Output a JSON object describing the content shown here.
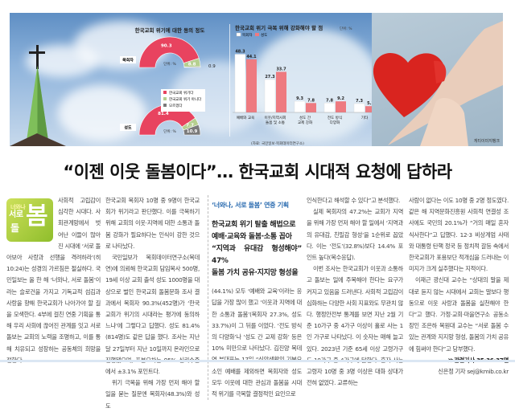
{
  "headline": "“이젠 이웃 돌봄이다”… 한국교회 시대적 요청에 답하라",
  "photo_credit": "게티이미지뱅크",
  "colors": {
    "pink": "#e8435f",
    "green": "#b5cf8f",
    "gray": "#7a7a7a",
    "bar_pastor": "#ffffff",
    "bar_member": "#ee7a80",
    "kicker": "#2b6cb0"
  },
  "chart_data": [
    {
      "type": "pie",
      "title": "한국교회 위기에 대한 동의 정도",
      "unit_label": "단위: %",
      "legend": [
        "한국교회 위기다",
        "한국교회 위기 아니다",
        "모르겠다"
      ],
      "series": [
        {
          "name": "목회자",
          "values": [
            90.3,
            8.8,
            0.9
          ]
        },
        {
          "name": "성도",
          "values": [
            81.4,
            7.7,
            10.9
          ]
        }
      ]
    },
    {
      "type": "bar",
      "title": "한국교회 위기 극복 위해 강화해야 할 점",
      "unit_label": "단위: %",
      "categories": [
        "예배와 교육",
        "이웃/지역사회 돌봄 및 소통",
        "성도 간 교제 강화",
        "전도 방식 다양화",
        "기타"
      ],
      "series": [
        {
          "name": "목회자",
          "values": [
            48.3,
            27.3,
            9.3,
            7.8,
            7.3
          ]
        },
        {
          "name": "성도",
          "values": [
            44.1,
            33.7,
            7.8,
            9.2,
            5.2
          ]
        }
      ],
      "source": "(자료: 국민일보·목회데이터연구소)",
      "legend": "top-left"
    }
  ],
  "logo": {
    "line1": "너와나",
    "line2": "서로",
    "line3": "돌",
    "line4": "봄"
  },
  "col1": [
    "사회적 고립감이 심각한 시대다. 사회관계망에서 벗어난 이들이 많아진 시대에 ‘서로 돌아보아 사랑과 선행을 격려하라’(히 10:24)는 성경의 가르침은 절실하다. 국민일보는 올 한 해 ‘너와나, 서로 돌봄’이라는 슬로건을 가지고 기독교적 섬김과 사랑을 향해 한국교회가 나아가야 할 길을 모색한다. 4부에 걸친 연중 기획을 통해 우리 사회에 끊어진 관계를 잇고 서로 돌보는 교회의 노력을 조명하고, 이를 통해 치유되고 성장하는 공동체의 희망을 전한다."
  ],
  "col2": [
    "한국교회 목회자 10명 중 9명이 한국교회가 위기라고 판단했다. 이를 극복하기 위해 교회의 이웃·지역에 대한 소통과 돌봄 강화가 필요하다는 인식이 강한 것으로 나타났다.",
    "국민일보가 목회데이터연구소(목데연)에 의뢰해 한국교회 담임목사 500명, 19세 이상 교회 출석 성도 1000명을 대상으로 벌인 한국교회 돌봄문화 조사 결과에서 목회자 90.3%(452명)가 ‘한국교회가 위기의 시대라는 평가에 동의하느냐’에 그렇다고 답했다. 성도 81.4%(814명)도 같은 답을 했다. 조사는 지난달 27일부터 지난 10일까지 온라인으로 진행됐으며, 표본오차는 95% 신뢰수준에서 ±3.1% 포인트다.",
    "위기 극복을 위해 가장 먼저 해야 할 일을 묻는 질문엔 목회자(48.3%)와 성도"
  ],
  "col3": {
    "kicker": "‘너와나, 서로 돌봄’ 연중 기획",
    "subheads": [
      "한국교회 위기 탈출 해법으로",
      "예배·교육와 돌봄·소통 꼽아",
      "“지역과 유대감 형성해야” 47%",
      "돌봄 가치 공유·지지망 형성을"
    ],
    "text": "(44.1%) 모두 ‘예배와 교육’이라는 응답을 가장 많이 했고 ‘이웃과 지역에 대한 소통과 돌봄’(목회자 27.3%, 성도 33.7%)이 그 뒤를 이었다. ‘전도 방식의 다양화’나 ‘성도 간 교제 강화’ 등은 10% 미만으로 나타났다. 김진양 목데연 부대표는 17일 “신앙생활의 기본요소인 예배를 제외하면 목회자와 성도 모두 이웃에 대한 관심과 돌봄을 시대적 위기를 극복할 결정적인 요인으로"
  },
  "col4": [
    "인식한다고 해석할 수 있다”고 분석했다.",
    "실제 목회자의 47.2%는 교회가 지역을 위해 가장 먼저 해야 할 일에서 ‘지역과의 유대감, 친밀감 형성’을 1순위로 꼽았다. 이는 ‘전도’(32.8%)보다 14.4% 포인트 높다(복수응답).",
    "이번 조사는 한국교회가 이웃과 소통하고 돌보는 일에 주목해야 한다는 요구가 커지고 있음을 드러낸다. 사회적 고립감이 심화하는 다양한 사회 지표와도 무관치 않다. 행정안전부 통계를 보면 지난 2월 기준 10가구 중 4가구 이상이 홀로 사는 1인 가구로 나타났다. 이 숫자는 매해 늘고 있다. 2023년 기준 65세 이상 고령가구도 10가구 중 4가구에 달한다. 혼자 사는 고령자 10명 중 3명 이상은 대화 상대가 전혀 없었다. 교류하는"
  ],
  "col5": [
    "사람이 없다는 이도 10명 중 2명 정도였다. 같은 해 지역문화진흥원 사회적 연결성 조사에도 국민의 20.1%가 “거의 매일 혼자 식사한다”고 답했다. 12·3 비상계엄 사태와 대통령 탄핵 정국 등 정치적 갈등 속에서 한국교회가 포용보단 적개심을 드러내는 이미지가 크게 실추했다는 지적이다.",
    "이재근 광신대 교수는 “상대의 말을 제대로 듣지 않는 시대에서 교회는 말보다 행동으로 이웃 사랑과 돌봄을 실천해야 한다”고 했다. 가정·교회·마을연구소 공동소장인 조은하 목원대 교수는 “서로 돌봄 수 있는 관계와 지지망 형성, 돌봄의 가치 공유에 힘써야 한다”고 당부했다."
  ],
  "related": "≫관련기사 35·36·37면",
  "byline": "신은정 기자 sej@kmib.co.kr"
}
